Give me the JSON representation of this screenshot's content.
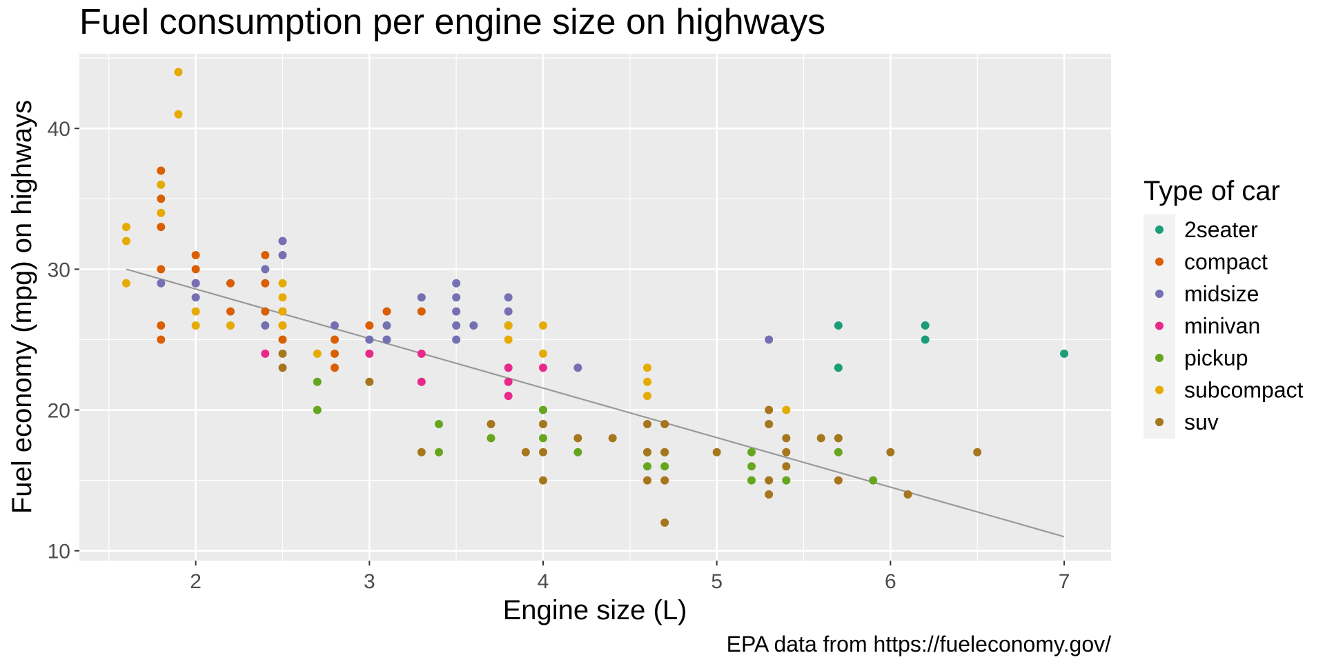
{
  "chart_data": {
    "type": "scatter",
    "title": "Fuel consumption per engine size on highways",
    "xlabel": "Engine size (L)",
    "ylabel": "Fuel economy (mpg) on highways",
    "caption": "EPA data from https://fueleconomy.gov/",
    "xlim": [
      1.33,
      7.27
    ],
    "ylim": [
      9.3,
      45.3
    ],
    "x_ticks": [
      2,
      3,
      4,
      5,
      6,
      7
    ],
    "y_ticks": [
      10,
      20,
      30,
      40
    ],
    "grid": true,
    "legend": {
      "title": "Type of car",
      "position": "right"
    },
    "series": [
      {
        "name": "2seater",
        "color": "#1B9E77",
        "points": [
          [
            5.7,
            26
          ],
          [
            5.7,
            23
          ],
          [
            6.2,
            26
          ],
          [
            6.2,
            25
          ],
          [
            7.0,
            24
          ]
        ]
      },
      {
        "name": "compact",
        "color": "#D95F02",
        "points": [
          [
            1.8,
            37
          ],
          [
            1.8,
            35
          ],
          [
            1.8,
            33
          ],
          [
            1.8,
            30
          ],
          [
            1.8,
            26
          ],
          [
            1.8,
            25
          ],
          [
            2.0,
            31
          ],
          [
            2.0,
            30
          ],
          [
            2.0,
            29
          ],
          [
            2.2,
            29
          ],
          [
            2.2,
            27
          ],
          [
            2.4,
            31
          ],
          [
            2.4,
            29
          ],
          [
            2.4,
            27
          ],
          [
            2.5,
            27
          ],
          [
            2.5,
            26
          ],
          [
            2.5,
            25
          ],
          [
            2.8,
            25
          ],
          [
            2.8,
            24
          ],
          [
            2.8,
            23
          ],
          [
            3.0,
            26
          ],
          [
            3.1,
            27
          ],
          [
            3.3,
            27
          ]
        ]
      },
      {
        "name": "midsize",
        "color": "#7570B3",
        "points": [
          [
            1.8,
            29
          ],
          [
            2.0,
            29
          ],
          [
            2.0,
            28
          ],
          [
            2.4,
            30
          ],
          [
            2.4,
            26
          ],
          [
            2.5,
            32
          ],
          [
            2.5,
            31
          ],
          [
            2.8,
            26
          ],
          [
            3.0,
            25
          ],
          [
            3.1,
            26
          ],
          [
            3.1,
            25
          ],
          [
            3.3,
            28
          ],
          [
            3.5,
            29
          ],
          [
            3.5,
            28
          ],
          [
            3.5,
            27
          ],
          [
            3.5,
            26
          ],
          [
            3.5,
            25
          ],
          [
            3.6,
            26
          ],
          [
            3.8,
            28
          ],
          [
            3.8,
            27
          ],
          [
            3.8,
            26
          ],
          [
            4.2,
            23
          ],
          [
            5.3,
            25
          ]
        ]
      },
      {
        "name": "minivan",
        "color": "#E7298A",
        "points": [
          [
            2.4,
            24
          ],
          [
            3.0,
            24
          ],
          [
            3.3,
            24
          ],
          [
            3.3,
            22
          ],
          [
            3.8,
            23
          ],
          [
            3.8,
            22
          ],
          [
            3.8,
            21
          ],
          [
            4.0,
            23
          ]
        ]
      },
      {
        "name": "pickup",
        "color": "#66A61E",
        "points": [
          [
            2.7,
            22
          ],
          [
            2.7,
            20
          ],
          [
            3.4,
            19
          ],
          [
            3.4,
            17
          ],
          [
            3.7,
            18
          ],
          [
            4.0,
            20
          ],
          [
            4.0,
            18
          ],
          [
            4.2,
            17
          ],
          [
            4.6,
            17
          ],
          [
            4.6,
            16
          ],
          [
            4.7,
            17
          ],
          [
            4.7,
            16
          ],
          [
            5.2,
            17
          ],
          [
            5.2,
            16
          ],
          [
            5.2,
            15
          ],
          [
            5.4,
            15
          ],
          [
            5.7,
            17
          ],
          [
            5.9,
            15
          ]
        ]
      },
      {
        "name": "subcompact",
        "color": "#E6AB02",
        "points": [
          [
            1.6,
            33
          ],
          [
            1.6,
            32
          ],
          [
            1.6,
            29
          ],
          [
            1.8,
            36
          ],
          [
            1.8,
            34
          ],
          [
            1.9,
            44
          ],
          [
            1.9,
            41
          ],
          [
            2.0,
            27
          ],
          [
            2.0,
            26
          ],
          [
            2.2,
            26
          ],
          [
            2.5,
            29
          ],
          [
            2.5,
            28
          ],
          [
            2.5,
            27
          ],
          [
            2.5,
            26
          ],
          [
            2.7,
            24
          ],
          [
            3.8,
            26
          ],
          [
            3.8,
            25
          ],
          [
            4.0,
            26
          ],
          [
            4.0,
            24
          ],
          [
            4.6,
            23
          ],
          [
            4.6,
            22
          ],
          [
            4.6,
            21
          ],
          [
            5.4,
            20
          ]
        ]
      },
      {
        "name": "suv",
        "color": "#A6761D",
        "points": [
          [
            2.5,
            24
          ],
          [
            2.5,
            23
          ],
          [
            3.0,
            22
          ],
          [
            3.3,
            17
          ],
          [
            3.7,
            19
          ],
          [
            3.9,
            17
          ],
          [
            4.0,
            19
          ],
          [
            4.0,
            17
          ],
          [
            4.0,
            15
          ],
          [
            4.2,
            18
          ],
          [
            4.4,
            18
          ],
          [
            4.6,
            19
          ],
          [
            4.6,
            17
          ],
          [
            4.6,
            15
          ],
          [
            4.7,
            19
          ],
          [
            4.7,
            17
          ],
          [
            4.7,
            15
          ],
          [
            4.7,
            12
          ],
          [
            5.0,
            17
          ],
          [
            5.3,
            20
          ],
          [
            5.3,
            19
          ],
          [
            5.3,
            15
          ],
          [
            5.3,
            14
          ],
          [
            5.4,
            18
          ],
          [
            5.4,
            17
          ],
          [
            5.4,
            16
          ],
          [
            5.6,
            18
          ],
          [
            5.7,
            18
          ],
          [
            5.7,
            15
          ],
          [
            6.0,
            17
          ],
          [
            6.1,
            14
          ],
          [
            6.5,
            17
          ]
        ]
      }
    ],
    "trend_line": {
      "color": "#999999",
      "x": [
        1.6,
        7.0
      ],
      "y": [
        30.0,
        11.0
      ]
    }
  }
}
